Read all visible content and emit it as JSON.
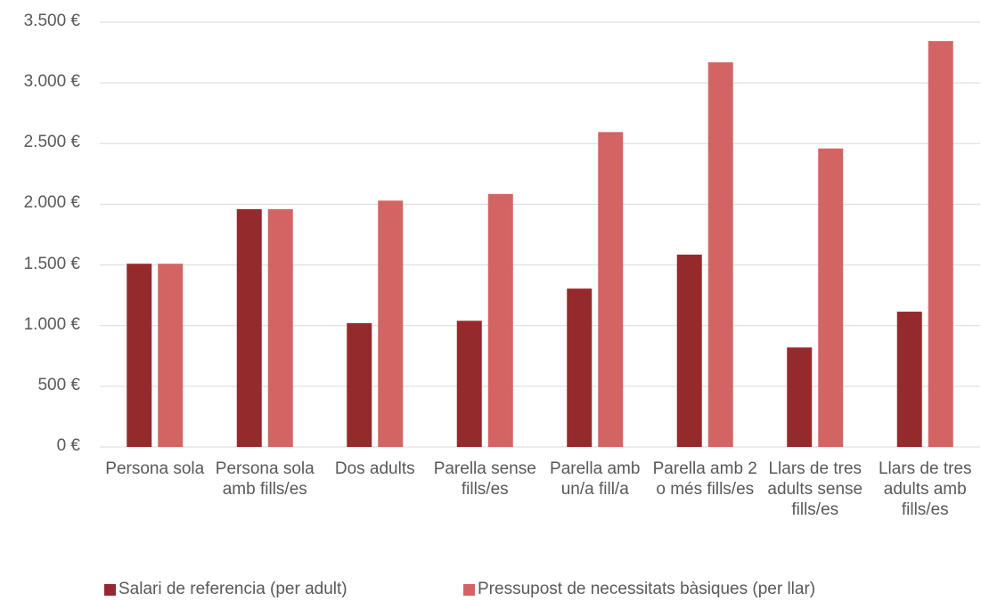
{
  "chart_data": {
    "type": "bar",
    "categories": [
      "Persona sola",
      "Persona sola amb fills/es",
      "Dos adults",
      "Parella sense fills/es",
      "Parella amb un/a fill/a",
      "Parella amb 2 o més fills/es",
      "Llars de tres adults sense fills/es",
      "Llars de tres adults amb fills/es"
    ],
    "series": [
      {
        "name": "Salari de referencia (per adult)",
        "color": "#952a2c",
        "values": [
          1510,
          1960,
          1020,
          1040,
          1305,
          1585,
          820,
          1115
        ]
      },
      {
        "name": "Pressupost de necessitats bàsiques (per llar)",
        "color": "#d46464",
        "values": [
          1510,
          1960,
          2030,
          2085,
          2595,
          3170,
          2460,
          3345
        ]
      }
    ],
    "ylim": [
      0,
      3500
    ],
    "yticks": [
      {
        "value": 0,
        "label": "0 €"
      },
      {
        "value": 500,
        "label": "500 €"
      },
      {
        "value": 1000,
        "label": "1.000 €"
      },
      {
        "value": 1500,
        "label": "1.500 €"
      },
      {
        "value": 2000,
        "label": "2.000 €"
      },
      {
        "value": 2500,
        "label": "2.500 €"
      },
      {
        "value": 3000,
        "label": "3.000 €"
      },
      {
        "value": 3500,
        "label": "3.500 €"
      }
    ],
    "grid": true,
    "legend": "bottom"
  }
}
